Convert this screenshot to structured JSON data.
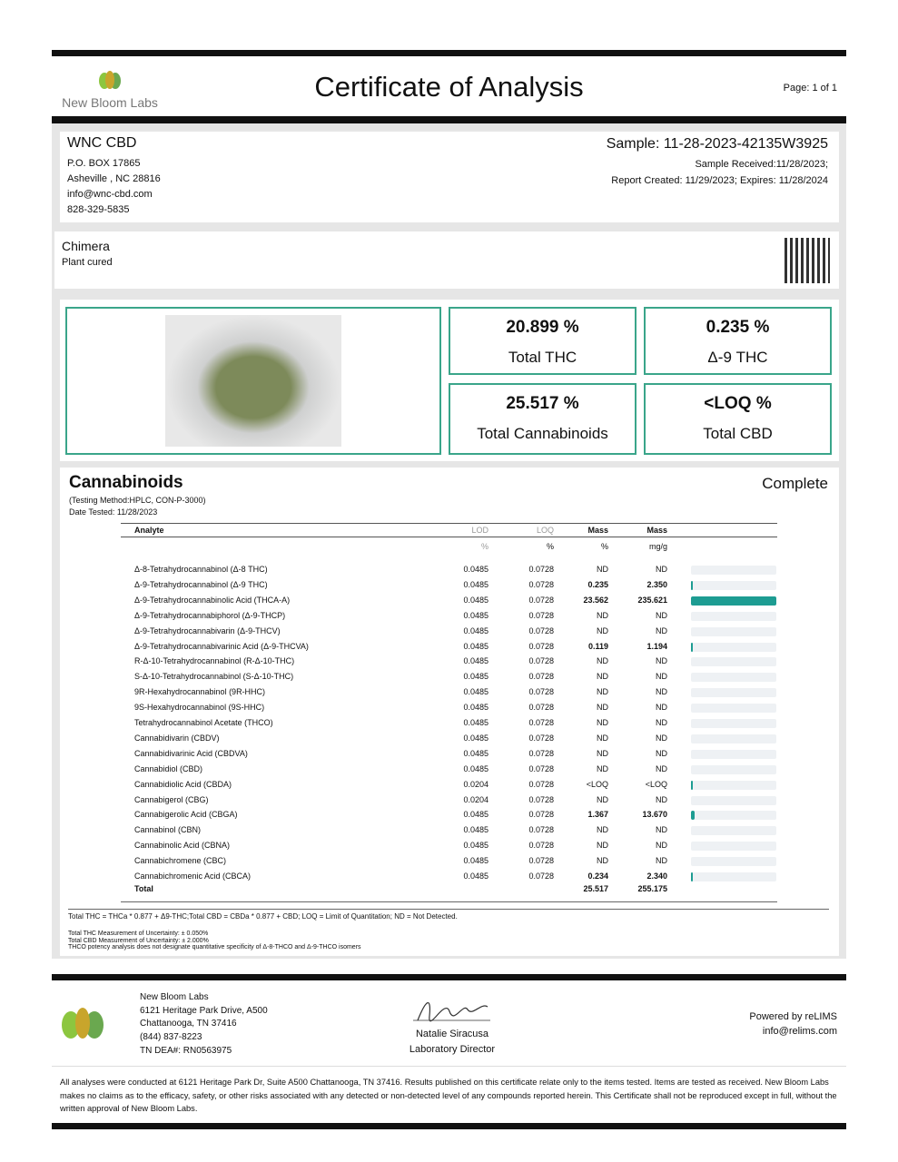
{
  "header": {
    "lab_logo_text": "New Bloom Labs",
    "title": "Certificate of Analysis",
    "page": "Page: 1 of 1"
  },
  "client": {
    "name": "WNC CBD",
    "address1": "P.O. BOX 17865",
    "address2": "Asheville , NC 28816",
    "email": "info@wnc-cbd.com",
    "phone": "828-329-5835"
  },
  "sample": {
    "id": "Sample: 11-28-2023-42135W3925",
    "received": "Sample Received:11/28/2023;",
    "report": "Report Created: 11/29/2023; Expires: 11/28/2024",
    "name": "Chimera",
    "type": "Plant cured"
  },
  "summary": [
    {
      "value": "20.899 %",
      "label": "Total THC"
    },
    {
      "value": "0.235 %",
      "label": "Δ-9 THC"
    },
    {
      "value": "25.517 %",
      "label": "Total Cannabinoids"
    },
    {
      "value": "<LOQ %",
      "label": "Total CBD"
    }
  ],
  "cannabinoids": {
    "title": "Cannabinoids",
    "status": "Complete",
    "method": "(Testing Method:HPLC, CON-P-3000)",
    "date": "Date Tested: 11/28/2023",
    "headers": [
      "Analyte",
      "LOD",
      "LOQ",
      "Mass",
      "Mass"
    ],
    "units": [
      "",
      "%",
      "%",
      "%",
      "mg/g"
    ],
    "bar_color": "#1d9c92",
    "rows": [
      [
        "Δ-8-Tetrahydrocannabinol (Δ-8 THC)",
        "0.0485",
        "0.0728",
        "ND",
        "ND",
        0
      ],
      [
        "Δ-9-Tetrahydrocannabinol (Δ-9 THC)",
        "0.0485",
        "0.0728",
        "0.235",
        "2.350",
        0.235
      ],
      [
        "Δ-9-Tetrahydrocannabinolic Acid (THCA-A)",
        "0.0485",
        "0.0728",
        "23.562",
        "235.621",
        23.562
      ],
      [
        "Δ-9-Tetrahydrocannabiphorol (Δ-9-THCP)",
        "0.0485",
        "0.0728",
        "ND",
        "ND",
        0
      ],
      [
        "Δ-9-Tetrahydrocannabivarin (Δ-9-THCV)",
        "0.0485",
        "0.0728",
        "ND",
        "ND",
        0
      ],
      [
        "Δ-9-Tetrahydrocannabivarinic Acid (Δ-9-THCVA)",
        "0.0485",
        "0.0728",
        "0.119",
        "1.194",
        0.119
      ],
      [
        "R-Δ-10-Tetrahydrocannabinol (R-Δ-10-THC)",
        "0.0485",
        "0.0728",
        "ND",
        "ND",
        0
      ],
      [
        "S-Δ-10-Tetrahydrocannabinol (S-Δ-10-THC)",
        "0.0485",
        "0.0728",
        "ND",
        "ND",
        0
      ],
      [
        "9R-Hexahydrocannabinol (9R-HHC)",
        "0.0485",
        "0.0728",
        "ND",
        "ND",
        0
      ],
      [
        "9S-Hexahydrocannabinol (9S-HHC)",
        "0.0485",
        "0.0728",
        "ND",
        "ND",
        0
      ],
      [
        "Tetrahydrocannabinol Acetate (THCO)",
        "0.0485",
        "0.0728",
        "ND",
        "ND",
        0
      ],
      [
        "Cannabidivarin (CBDV)",
        "0.0485",
        "0.0728",
        "ND",
        "ND",
        0
      ],
      [
        "Cannabidivarinic Acid (CBDVA)",
        "0.0485",
        "0.0728",
        "ND",
        "ND",
        0
      ],
      [
        "Cannabidiol (CBD)",
        "0.0485",
        "0.0728",
        "ND",
        "ND",
        0
      ],
      [
        "Cannabidiolic Acid (CBDA)",
        "0.0204",
        "0.0728",
        "<LOQ",
        "<LOQ",
        0.03
      ],
      [
        "Cannabigerol (CBG)",
        "0.0204",
        "0.0728",
        "ND",
        "ND",
        0
      ],
      [
        "Cannabigerolic Acid (CBGA)",
        "0.0485",
        "0.0728",
        "1.367",
        "13.670",
        1.367
      ],
      [
        "Cannabinol (CBN)",
        "0.0485",
        "0.0728",
        "ND",
        "ND",
        0
      ],
      [
        "Cannabinolic Acid (CBNA)",
        "0.0485",
        "0.0728",
        "ND",
        "ND",
        0
      ],
      [
        "Cannabichromene (CBC)",
        "0.0485",
        "0.0728",
        "ND",
        "ND",
        0
      ],
      [
        "Cannabichromenic Acid (CBCA)",
        "0.0485",
        "0.0728",
        "0.234",
        "2.340",
        0.234
      ]
    ],
    "total": {
      "label": "Total",
      "pct": "25.517",
      "mgg": "255.175"
    },
    "note": "Total THC = THCa * 0.877 + Δ9-THC;Total CBD = CBDa * 0.877 + CBD; LOQ = Limit of Quantitation; ND = Not Detected.",
    "unc1": "Total THC Measurement of Uncertainty: ± 0.050%",
    "unc2": "Total CBD Measurement of Uncertainty: ± 2.000%",
    "unc3": "THCO potency analysis does not designate quantitative specificity of Δ-8-THCO and Δ-9-THCO isomers"
  },
  "footer": {
    "lab": "New Bloom Labs",
    "addr1": "6121 Heritage Park Drive, A500",
    "addr2": "Chattanooga, TN 37416",
    "phone": "(844) 837-8223",
    "dea": "TN DEA#: RN0563975",
    "signer": "Natalie Siracusa",
    "role": "Laboratory Director",
    "powered": "Powered by reLIMS",
    "powered_email": "info@relims.com",
    "disclaimer": "All analyses were conducted at 6121 Heritage Park Dr, Suite A500 Chattanooga, TN 37416. Results published on this certificate relate only to the items tested. Items are tested as received. New Bloom Labs makes no claims as to the efficacy, safety, or other risks associated with any detected or non-detected level of any compounds reported herein. This Certificate shall not be reproduced except in full, without the written approval of New Bloom Labs."
  }
}
